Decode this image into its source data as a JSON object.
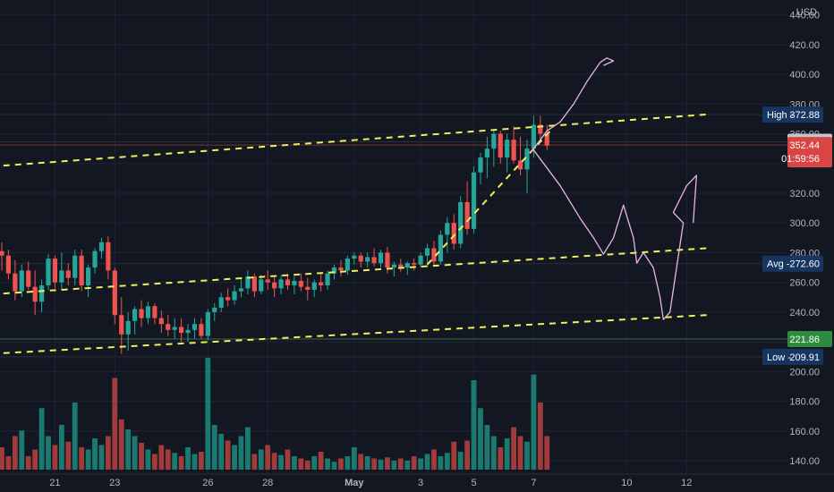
{
  "chart_data": {
    "type": "candlestick",
    "currency": "USD",
    "y_axis": {
      "ticks": [
        140,
        160,
        180,
        200,
        220,
        240,
        260,
        280,
        300,
        320,
        340,
        360,
        380,
        400,
        420,
        440
      ],
      "tick_labels": [
        "140.00",
        "160.00",
        "180.00",
        "200.00",
        "220.00",
        "240.00",
        "260.00",
        "280.00",
        "300.00",
        "320.00",
        "340.00",
        "360.00",
        "380.00",
        "400.00",
        "420.00",
        "440.00"
      ],
      "range": [
        131,
        450
      ]
    },
    "x_axis": {
      "labels": [
        {
          "text": "21",
          "bar": 8
        },
        {
          "text": "23",
          "bar": 17
        },
        {
          "text": "26",
          "bar": 31
        },
        {
          "text": "28",
          "bar": 40
        },
        {
          "text": "May",
          "bar": 53,
          "bold": true
        },
        {
          "text": "3",
          "bar": 63
        },
        {
          "text": "5",
          "bar": 71
        },
        {
          "text": "7",
          "bar": 80
        },
        {
          "text": "10",
          "bar": 94
        },
        {
          "text": "12",
          "bar": 103
        }
      ]
    },
    "price_lines": [
      {
        "name": "High",
        "value": 372.88,
        "label": "High",
        "value_label": "372.88",
        "style": "blue"
      },
      {
        "name": "last",
        "value": 354.62,
        "value_label": "354.62",
        "style": "gray"
      },
      {
        "name": "current",
        "value": 352.44,
        "value_label": "352.44",
        "countdown": "01:59:56",
        "style": "red"
      },
      {
        "name": "Avg",
        "value": 272.6,
        "label": "Avg",
        "value_label": "272.60",
        "style": "blue"
      },
      {
        "name": "level",
        "value": 221.86,
        "value_label": "221.86",
        "style": "green"
      },
      {
        "name": "Low",
        "value": 209.91,
        "label": "Low",
        "value_label": "209.91",
        "style": "blue"
      }
    ],
    "candles": [
      [
        281,
        287,
        268,
        278
      ],
      [
        278,
        282,
        262,
        266
      ],
      [
        266,
        275,
        248,
        254
      ],
      [
        254,
        272,
        250,
        268
      ],
      [
        268,
        274,
        255,
        257
      ],
      [
        257,
        268,
        238,
        247
      ],
      [
        247,
        262,
        240,
        258
      ],
      [
        258,
        279,
        255,
        276
      ],
      [
        276,
        278,
        256,
        260
      ],
      [
        260,
        280,
        255,
        268
      ],
      [
        268,
        273,
        258,
        263
      ],
      [
        263,
        282,
        258,
        278
      ],
      [
        278,
        282,
        254,
        258
      ],
      [
        258,
        272,
        250,
        270
      ],
      [
        270,
        283,
        266,
        281
      ],
      [
        281,
        290,
        276,
        287
      ],
      [
        287,
        291,
        262,
        268
      ],
      [
        268,
        270,
        232,
        238
      ],
      [
        238,
        250,
        212,
        225
      ],
      [
        225,
        240,
        214,
        234
      ],
      [
        234,
        244,
        225,
        242
      ],
      [
        242,
        248,
        230,
        236
      ],
      [
        236,
        247,
        232,
        244
      ],
      [
        244,
        246,
        232,
        236
      ],
      [
        236,
        241,
        226,
        232
      ],
      [
        232,
        238,
        224,
        228
      ],
      [
        228,
        236,
        222,
        230
      ],
      [
        230,
        236,
        220,
        226
      ],
      [
        226,
        232,
        220,
        228
      ],
      [
        228,
        236,
        222,
        232
      ],
      [
        232,
        236,
        222,
        224
      ],
      [
        224,
        242,
        221,
        240
      ],
      [
        240,
        246,
        234,
        243
      ],
      [
        243,
        253,
        240,
        250
      ],
      [
        250,
        256,
        244,
        248
      ],
      [
        248,
        258,
        245,
        254
      ],
      [
        254,
        262,
        250,
        256
      ],
      [
        256,
        268,
        252,
        264
      ],
      [
        264,
        266,
        250,
        254
      ],
      [
        254,
        265,
        252,
        262
      ],
      [
        262,
        268,
        255,
        260
      ],
      [
        260,
        264,
        250,
        256
      ],
      [
        256,
        265,
        252,
        262
      ],
      [
        262,
        266,
        255,
        258
      ],
      [
        258,
        264,
        252,
        261
      ],
      [
        261,
        266,
        254,
        257
      ],
      [
        257,
        263,
        248,
        255
      ],
      [
        255,
        262,
        250,
        260
      ],
      [
        260,
        266,
        254,
        258
      ],
      [
        258,
        268,
        255,
        266
      ],
      [
        266,
        272,
        262,
        270
      ],
      [
        270,
        275,
        264,
        268
      ],
      [
        268,
        278,
        265,
        276
      ],
      [
        276,
        280,
        272,
        278
      ],
      [
        278,
        280,
        270,
        274
      ],
      [
        274,
        280,
        270,
        277
      ],
      [
        277,
        283,
        271,
        273
      ],
      [
        273,
        282,
        270,
        280
      ],
      [
        280,
        284,
        266,
        270
      ],
      [
        270,
        274,
        264,
        272
      ],
      [
        272,
        276,
        267,
        270
      ],
      [
        270,
        274,
        265,
        273
      ],
      [
        273,
        276,
        268,
        272
      ],
      [
        272,
        280,
        270,
        278
      ],
      [
        278,
        286,
        272,
        283
      ],
      [
        283,
        288,
        272,
        274
      ],
      [
        274,
        295,
        272,
        292
      ],
      [
        292,
        304,
        280,
        300
      ],
      [
        300,
        306,
        282,
        286
      ],
      [
        286,
        318,
        283,
        314
      ],
      [
        314,
        328,
        292,
        296
      ],
      [
        296,
        338,
        293,
        334
      ],
      [
        334,
        347,
        326,
        344
      ],
      [
        344,
        358,
        330,
        350
      ],
      [
        350,
        362,
        338,
        360
      ],
      [
        360,
        362,
        340,
        344
      ],
      [
        344,
        360,
        334,
        356
      ],
      [
        356,
        365,
        340,
        342
      ],
      [
        342,
        358,
        332,
        336
      ],
      [
        336,
        356,
        320,
        350
      ],
      [
        350,
        372,
        344,
        366
      ],
      [
        366,
        372,
        356,
        360
      ],
      [
        360,
        366,
        349,
        352
      ]
    ],
    "volume": {
      "range": [
        0,
        1
      ],
      "values": [
        0.2,
        0.12,
        0.3,
        0.35,
        0.12,
        0.18,
        0.55,
        0.3,
        0.22,
        0.4,
        0.25,
        0.6,
        0.2,
        0.18,
        0.28,
        0.22,
        0.3,
        0.82,
        0.45,
        0.36,
        0.3,
        0.24,
        0.18,
        0.14,
        0.22,
        0.18,
        0.15,
        0.12,
        0.2,
        0.14,
        0.16,
        1.0,
        0.4,
        0.32,
        0.26,
        0.22,
        0.3,
        0.38,
        0.14,
        0.18,
        0.22,
        0.15,
        0.13,
        0.18,
        0.12,
        0.1,
        0.08,
        0.12,
        0.16,
        0.1,
        0.07,
        0.1,
        0.12,
        0.2,
        0.14,
        0.12,
        0.1,
        0.09,
        0.11,
        0.08,
        0.1,
        0.08,
        0.12,
        0.1,
        0.14,
        0.18,
        0.12,
        0.15,
        0.25,
        0.16,
        0.26,
        0.8,
        0.55,
        0.4,
        0.3,
        0.2,
        0.28,
        0.38,
        0.3,
        0.25,
        0.85,
        0.6,
        0.3
      ]
    },
    "annotations": {
      "trendlines": [
        {
          "from": {
            "bar": -1.5,
            "price": 338
          },
          "to": {
            "bar": 106,
            "price": 373
          }
        },
        {
          "from": {
            "bar": -1.5,
            "price": 252
          },
          "to": {
            "bar": 106,
            "price": 283
          }
        },
        {
          "from": {
            "bar": -1.5,
            "price": 212
          },
          "to": {
            "bar": 106,
            "price": 238
          }
        },
        {
          "from": {
            "bar": 64,
            "price": 272
          },
          "to": {
            "bar": 82.5,
            "price": 362
          }
        }
      ],
      "sketch_path": [
        {
          "bar": 79.5,
          "price": 347
        },
        {
          "bar": 82,
          "price": 362
        },
        {
          "bar": 84,
          "price": 368
        },
        {
          "bar": 86,
          "price": 380
        },
        {
          "bar": 88,
          "price": 395
        },
        {
          "bar": 90,
          "price": 408
        },
        {
          "bar": 91,
          "price": 411
        },
        {
          "bar": 92,
          "price": 409
        },
        {
          "bar": 90.5,
          "price": 406
        }
      ],
      "sketch_path_2": [
        {
          "bar": 80,
          "price": 349
        },
        {
          "bar": 84,
          "price": 325
        },
        {
          "bar": 87,
          "price": 303
        },
        {
          "bar": 89,
          "price": 290
        },
        {
          "bar": 90.5,
          "price": 279
        },
        {
          "bar": 92,
          "price": 290
        },
        {
          "bar": 93.5,
          "price": 312
        },
        {
          "bar": 95,
          "price": 290
        },
        {
          "bar": 95.5,
          "price": 273
        },
        {
          "bar": 96.5,
          "price": 280
        },
        {
          "bar": 98,
          "price": 270
        },
        {
          "bar": 99,
          "price": 250
        },
        {
          "bar": 99.5,
          "price": 235
        },
        {
          "bar": 100.5,
          "price": 240
        },
        {
          "bar": 101.5,
          "price": 270
        },
        {
          "bar": 102.5,
          "price": 300
        },
        {
          "bar": 101,
          "price": 307
        },
        {
          "bar": 103,
          "price": 325
        },
        {
          "bar": 104.5,
          "price": 332
        },
        {
          "bar": 104,
          "price": 300
        }
      ]
    },
    "colors": {
      "background": "#131722",
      "up": "#26a69a",
      "down": "#ef5350",
      "volume_up": "#1b7a70",
      "volume_down": "#a13b3c",
      "grid": "#1f2433",
      "trendline": "#f0f05a",
      "sketch": "#e8b6dd",
      "badge_blue": "#163560",
      "badge_gray": "#c2c4cb",
      "badge_red": "#d74544",
      "badge_green": "#2e8b3d",
      "hline": "#2a4a36"
    }
  }
}
